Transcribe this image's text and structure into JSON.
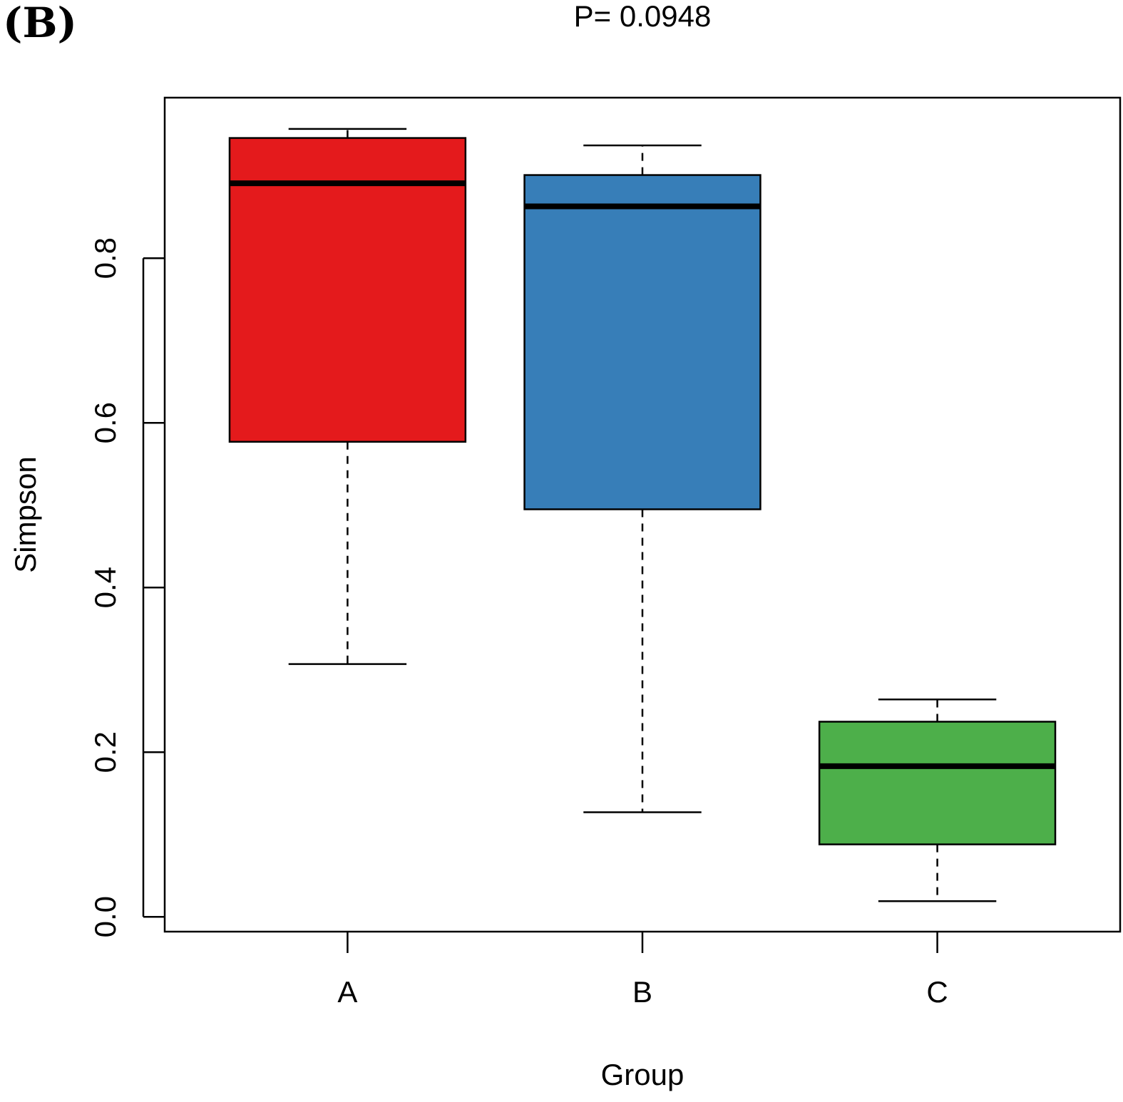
{
  "panel_label": "(B)",
  "chart_data": {
    "type": "boxplot",
    "title": "P= 0.0948",
    "xlabel": "Group",
    "ylabel": "Simpson",
    "ylim": [
      -0.018,
      0.995
    ],
    "yticks": [
      0.0,
      0.2,
      0.4,
      0.6,
      0.8
    ],
    "ytick_labels": [
      "0.0",
      "0.2",
      "0.4",
      "0.6",
      "0.8"
    ],
    "categories": [
      "A",
      "B",
      "C"
    ],
    "series": [
      {
        "name": "A",
        "color": "#E41A1C",
        "whisker_low": 0.307,
        "q1": 0.577,
        "median": 0.891,
        "q3": 0.946,
        "whisker_high": 0.957
      },
      {
        "name": "B",
        "color": "#377EB8",
        "whisker_low": 0.127,
        "q1": 0.495,
        "median": 0.863,
        "q3": 0.901,
        "whisker_high": 0.937
      },
      {
        "name": "C",
        "color": "#4DAF4A",
        "whisker_low": 0.019,
        "q1": 0.088,
        "median": 0.183,
        "q3": 0.237,
        "whisker_high": 0.264
      }
    ]
  }
}
